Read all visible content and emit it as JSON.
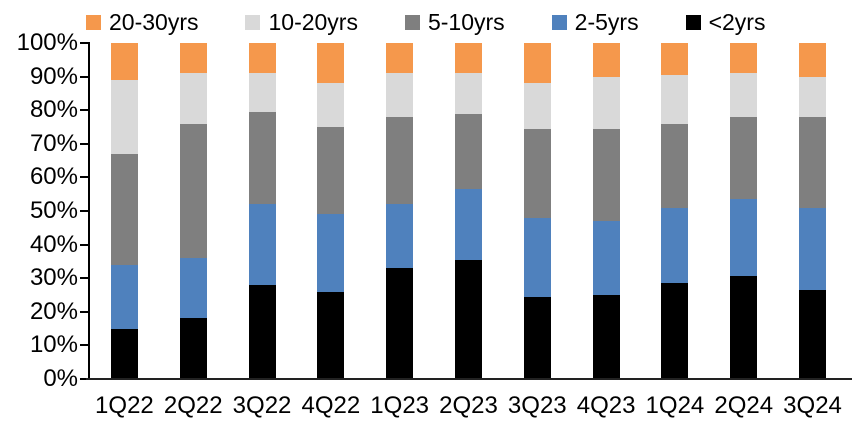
{
  "chart_data": {
    "type": "bar",
    "variant": "100%-stacked-column",
    "title": "",
    "xlabel": "",
    "ylabel": "",
    "ylim": [
      0,
      100
    ],
    "y_ticks": [
      "100%",
      "90%",
      "80%",
      "70%",
      "60%",
      "50%",
      "40%",
      "30%",
      "20%",
      "10%",
      "0%"
    ],
    "grid": "off",
    "legend_position": "top",
    "legend_order": [
      "20-30yrs",
      "10-20yrs",
      "5-10yrs",
      "2-5yrs",
      "<2yrs"
    ],
    "categories": [
      "1Q22",
      "2Q22",
      "3Q22",
      "4Q22",
      "1Q23",
      "2Q23",
      "3Q23",
      "4Q23",
      "1Q24",
      "2Q24",
      "3Q24"
    ],
    "series": [
      {
        "name": "<2yrs",
        "color": "#000000",
        "values": [
          15,
          18,
          28,
          26,
          33,
          35.5,
          24.5,
          25,
          28.5,
          30.5,
          26.5
        ]
      },
      {
        "name": "2-5yrs",
        "color": "#4F81BD",
        "values": [
          19,
          18,
          24,
          23,
          19,
          21,
          23.5,
          22,
          22.5,
          23,
          24.5
        ]
      },
      {
        "name": "5-10yrs",
        "color": "#7F7F7F",
        "values": [
          33,
          40,
          27.5,
          26,
          26,
          22.5,
          26.5,
          27.5,
          25,
          24.5,
          27
        ]
      },
      {
        "name": "10-20yrs",
        "color": "#D9D9D9",
        "values": [
          22,
          15,
          11.5,
          13,
          13,
          12,
          13.5,
          15.5,
          14.5,
          13,
          12
        ]
      },
      {
        "name": "20-30yrs",
        "color": "#F5984C",
        "values": [
          11,
          9,
          9,
          12,
          9,
          9,
          12,
          10,
          9.5,
          9,
          10
        ]
      }
    ],
    "axis_color": "#000000",
    "background_color": "#FFFFFF"
  }
}
